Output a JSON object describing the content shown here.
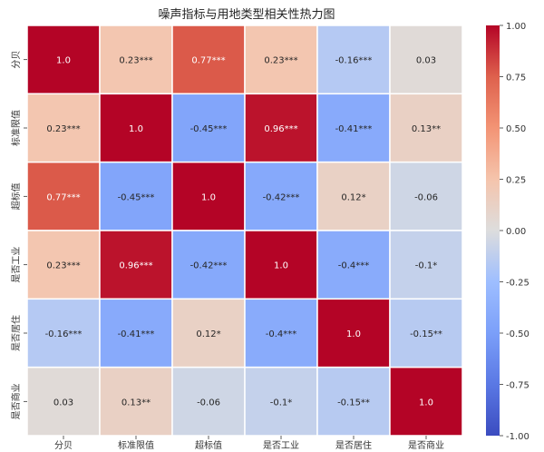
{
  "chart_data": {
    "type": "heatmap",
    "title": "噪声指标与用地类型相关性热力图",
    "row_labels": [
      "分贝",
      "标准限值",
      "超标值",
      "是否工业",
      "是否居住",
      "是否商业"
    ],
    "col_labels": [
      "分贝",
      "标准限值",
      "超标值",
      "是否工业",
      "是否居住",
      "是否商业"
    ],
    "values": [
      [
        1.0,
        0.23,
        0.77,
        0.23,
        -0.16,
        0.03
      ],
      [
        0.23,
        1.0,
        -0.45,
        0.96,
        -0.41,
        0.13
      ],
      [
        0.77,
        -0.45,
        1.0,
        -0.42,
        0.12,
        -0.06
      ],
      [
        0.23,
        0.96,
        -0.42,
        1.0,
        -0.4,
        -0.1
      ],
      [
        -0.16,
        -0.41,
        0.12,
        -0.4,
        1.0,
        -0.15
      ],
      [
        0.03,
        0.13,
        -0.06,
        -0.1,
        -0.15,
        1.0
      ]
    ],
    "annotations": [
      [
        "1.0",
        "0.23***",
        "0.77***",
        "0.23***",
        "-0.16***",
        "0.03"
      ],
      [
        "0.23***",
        "1.0",
        "-0.45***",
        "0.96***",
        "-0.41***",
        "0.13**"
      ],
      [
        "0.77***",
        "-0.45***",
        "1.0",
        "-0.42***",
        "0.12*",
        "-0.06"
      ],
      [
        "0.23***",
        "0.96***",
        "-0.42***",
        "1.0",
        "-0.4***",
        "-0.1*"
      ],
      [
        "-0.16***",
        "-0.41***",
        "0.12*",
        "-0.4***",
        "1.0",
        "-0.15**"
      ],
      [
        "0.03",
        "0.13**",
        "-0.06",
        "-0.1*",
        "-0.15**",
        "1.0"
      ]
    ],
    "colormap": "coolwarm",
    "vmin": -1.0,
    "vmax": 1.0,
    "colorbar_ticks": [
      "1.00",
      "0.75",
      "0.50",
      "0.25",
      "0.00",
      "-0.25",
      "-0.50",
      "-0.75",
      "-1.00"
    ],
    "colors": {
      "low": "#3b4cc0",
      "mid": "#dddddd",
      "high": "#b40426"
    }
  }
}
